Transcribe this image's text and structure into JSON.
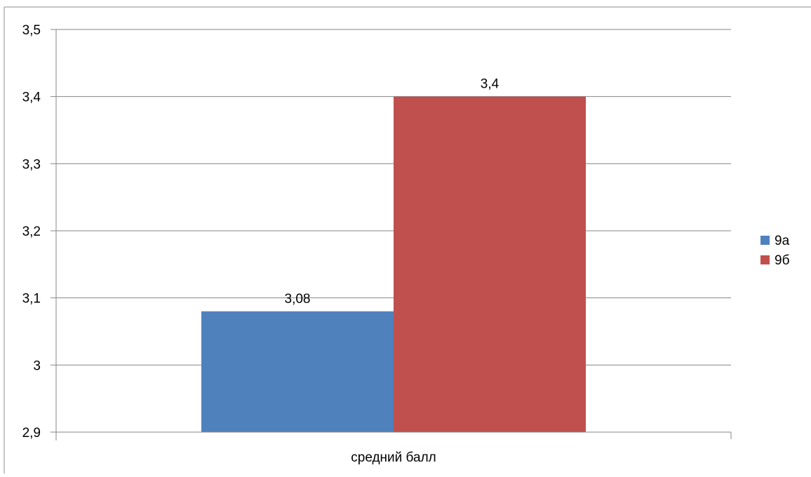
{
  "chart_data": {
    "type": "bar",
    "categories": [
      "средний балл"
    ],
    "series": [
      {
        "name": "9а",
        "values": [
          3.08
        ],
        "color": "#4F81BD",
        "data_label": "3,08"
      },
      {
        "name": "9б",
        "values": [
          3.4
        ],
        "color": "#C0504D",
        "data_label": "3,4"
      }
    ],
    "ylim": [
      2.9,
      3.5
    ],
    "y_ticks": [
      2.9,
      3.0,
      3.1,
      3.2,
      3.3,
      3.4,
      3.5
    ],
    "y_tick_labels": [
      "2,9",
      "3",
      "3,1",
      "3,2",
      "3,3",
      "3,4",
      "3,5"
    ],
    "grid": true,
    "legend": "right"
  }
}
